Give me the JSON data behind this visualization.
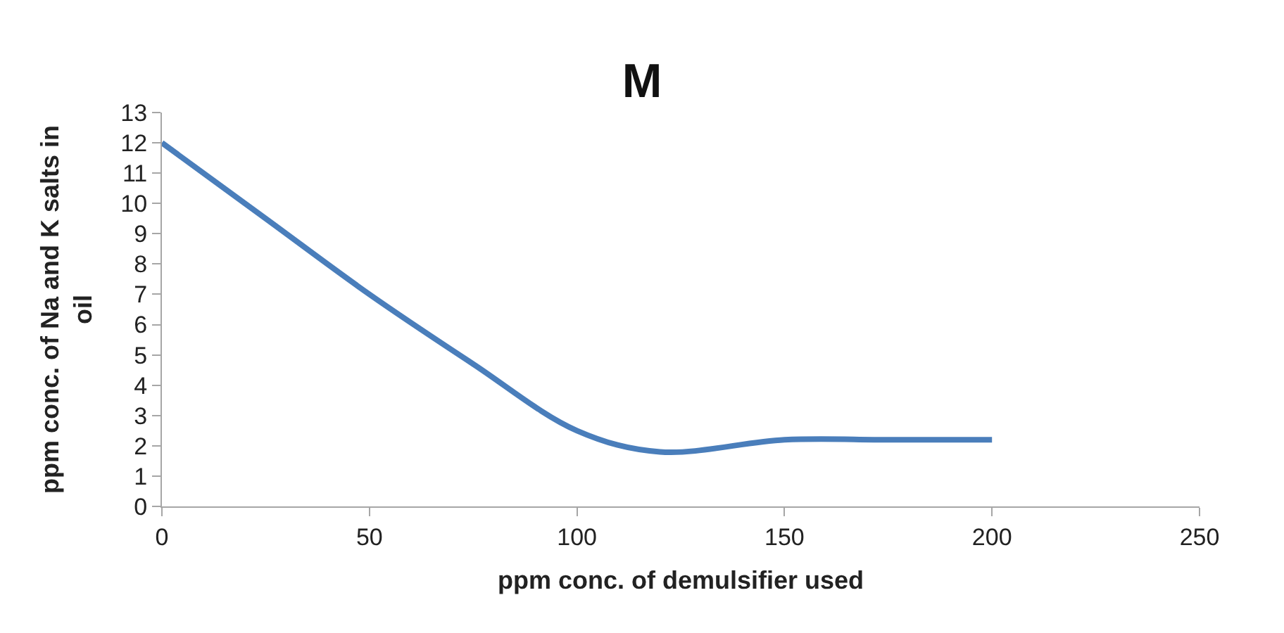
{
  "chart_data": {
    "type": "line",
    "title": "M",
    "xlabel": "ppm conc. of demulsifier used",
    "ylabel": "ppm conc. of Na and K salts in oil",
    "x": [
      0,
      25,
      50,
      75,
      100,
      120,
      150,
      175,
      200
    ],
    "series": [
      {
        "color": "#4a7ebb",
        "values": [
          12,
          9.5,
          7,
          4.7,
          2.5,
          1.8,
          2.2,
          2.2,
          2.2
        ]
      }
    ],
    "xlim": [
      0,
      250
    ],
    "xticks": [
      0,
      50,
      100,
      150,
      200,
      250
    ],
    "ylim": [
      0,
      13
    ],
    "yticks": [
      0,
      1,
      2,
      3,
      4,
      5,
      6,
      7,
      8,
      9,
      10,
      11,
      12,
      13
    ],
    "legend": false,
    "marker": "none",
    "line_style": "solid"
  }
}
